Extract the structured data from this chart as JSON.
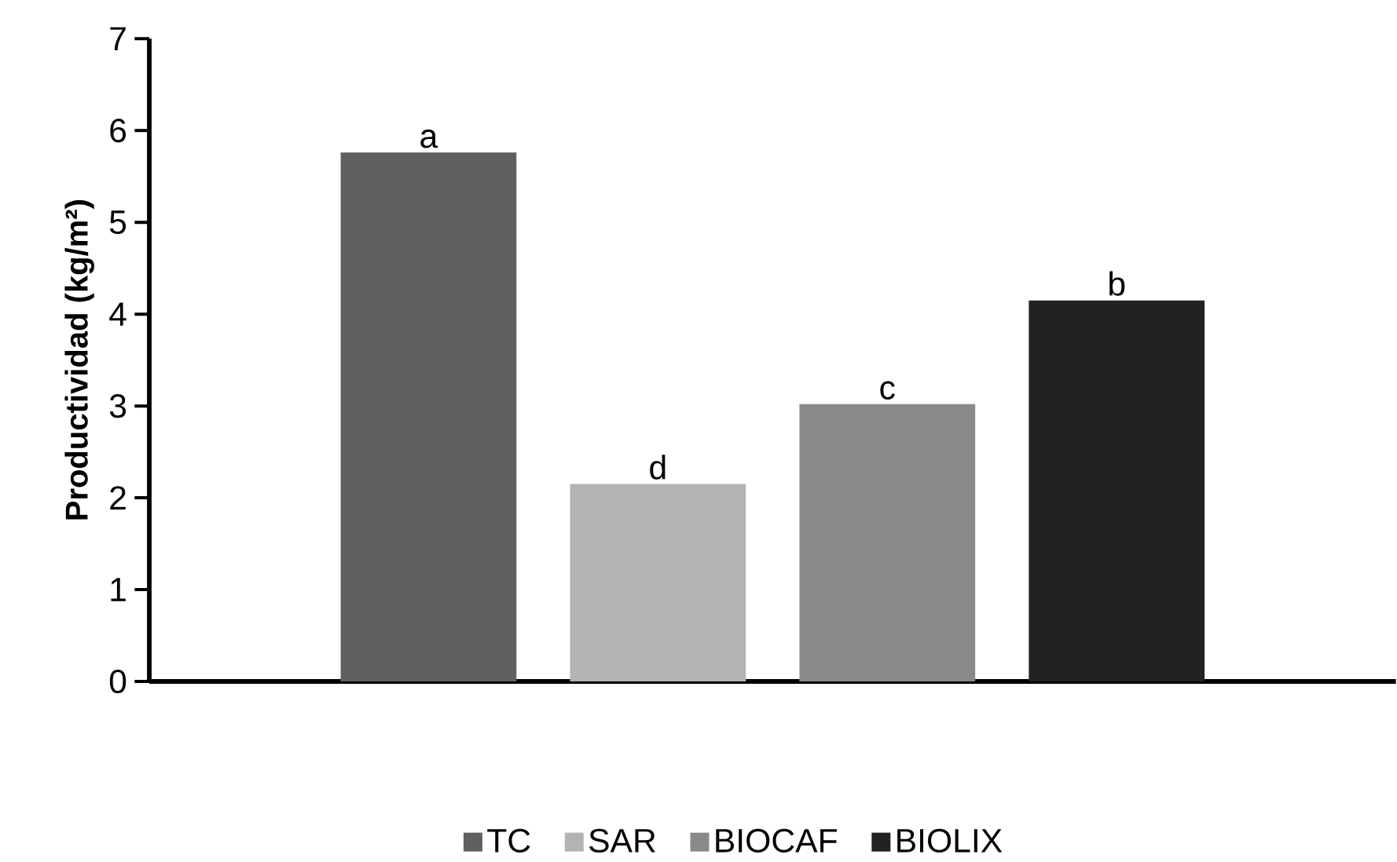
{
  "chart_data": {
    "type": "bar",
    "ylabel": "Productividad (kg/m²)",
    "categories": [
      null
    ],
    "series": [
      {
        "name": "TC",
        "color": "#606060",
        "values": [
          5.76
        ],
        "value_labels": [
          "a"
        ]
      },
      {
        "name": "SAR",
        "color": "#b3b3b3",
        "values": [
          2.15
        ],
        "value_labels": [
          "d"
        ]
      },
      {
        "name": "BIOCAF",
        "color": "#898989",
        "values": [
          3.02
        ],
        "value_labels": [
          "c"
        ]
      },
      {
        "name": "BIOLIX",
        "color": "#222222",
        "values": [
          4.15
        ],
        "value_labels": [
          "b"
        ]
      }
    ],
    "ylim": [
      0,
      7
    ],
    "yticks": [
      0,
      1,
      2,
      3,
      4,
      5,
      6,
      7
    ],
    "legend": "bottom"
  }
}
